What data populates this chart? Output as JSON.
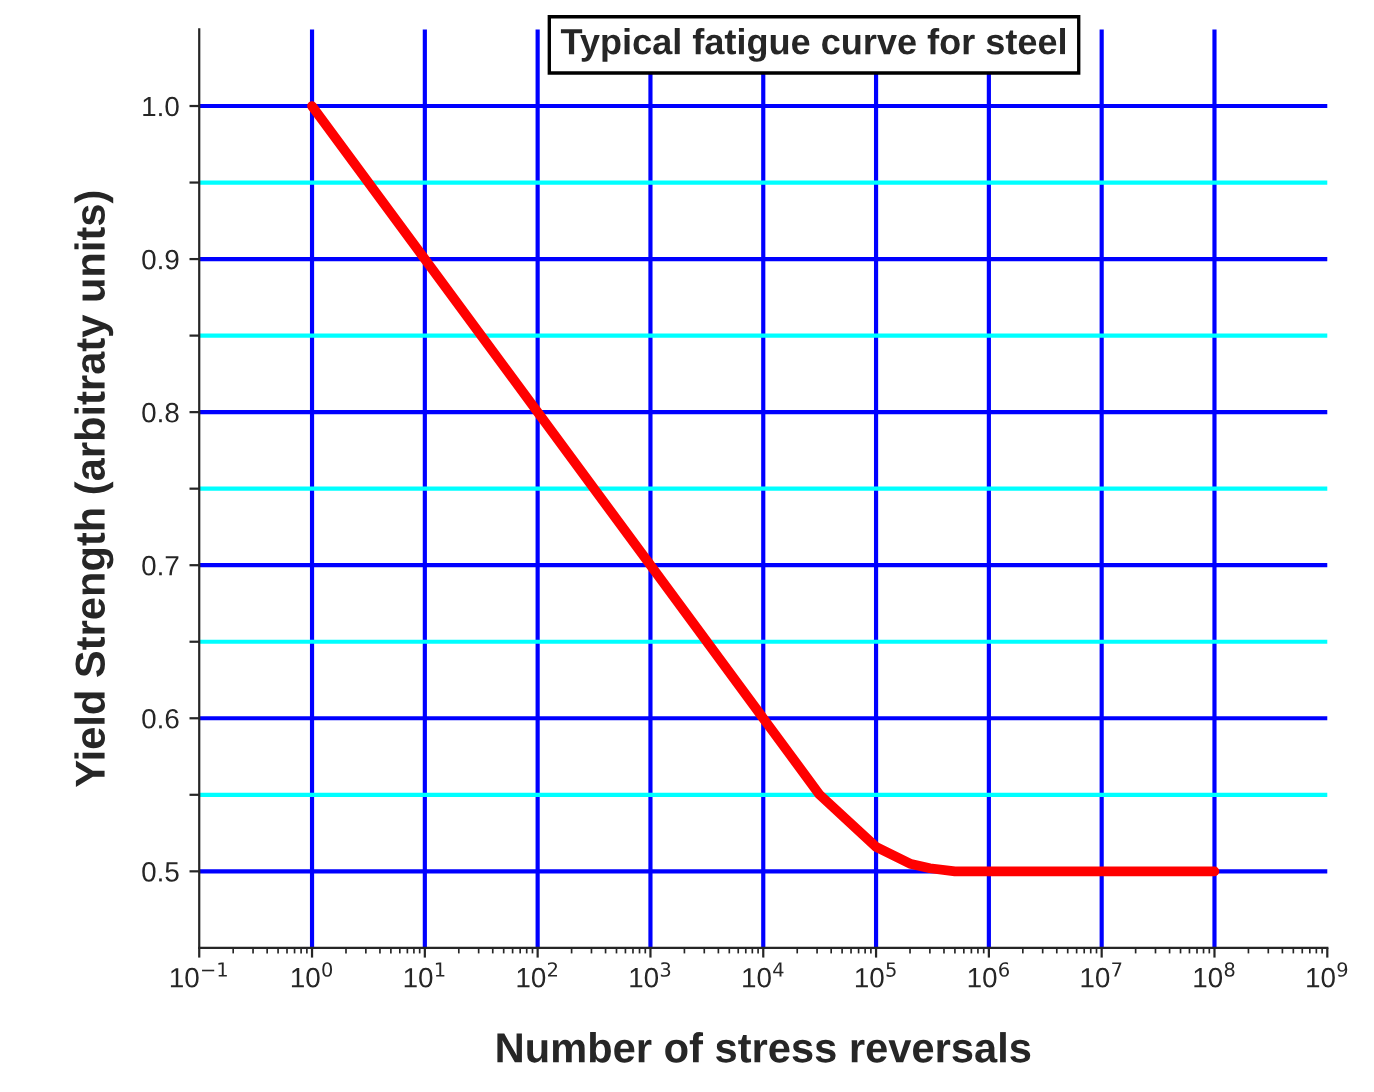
{
  "chart_data": {
    "type": "line",
    "title": "Typical fatigue curve for steel",
    "xlabel": "Number of stress reversals",
    "ylabel": "Yield Strength (arbitraty units)",
    "log": "x",
    "series": [
      {
        "color": "#ff0000",
        "x": [
          1,
          10,
          100,
          1000,
          10000,
          31623,
          100000,
          200000,
          300000,
          500000,
          100000000
        ],
        "values": [
          1.0,
          0.9,
          0.8,
          0.7,
          0.6,
          0.55,
          0.516,
          0.505,
          0.502,
          0.5,
          0.5
        ]
      }
    ],
    "xlim": [
      0.1,
      1000000000
    ],
    "xticks": [
      {
        "value": 0.1,
        "label": "10$^{−1}$"
      },
      {
        "value": 1,
        "label": "10$^{0}$"
      },
      {
        "value": 10,
        "label": "10$^{1}$"
      },
      {
        "value": 100,
        "label": "10$^{2}$"
      },
      {
        "value": 1000,
        "label": "10$^{3}$"
      },
      {
        "value": 10000,
        "label": "10$^{4}$"
      },
      {
        "value": 100000,
        "label": "10$^{5}$"
      },
      {
        "value": 1000000,
        "label": "10$^{6}$"
      },
      {
        "value": 10000000,
        "label": "10$^{7}$"
      },
      {
        "value": 100000000,
        "label": "10$^{8}$"
      },
      {
        "value": 1000000000,
        "label": "10$^{9}$"
      }
    ],
    "ylim": [
      0.45,
      1.05
    ],
    "yticks": [
      0.5,
      {
        "value": 0.55,
        "label": null
      },
      0.6,
      {
        "value": 0.65,
        "label": null
      },
      0.7,
      {
        "value": 0.75,
        "label": null
      },
      0.8,
      {
        "value": 0.85,
        "label": null
      },
      0.9,
      {
        "value": 0.95,
        "label": null
      },
      {
        "value": 1.0,
        "label": "1.0"
      }
    ],
    "grid": true,
    "marker": "none",
    "line_style": "solid",
    "legend": false
  }
}
